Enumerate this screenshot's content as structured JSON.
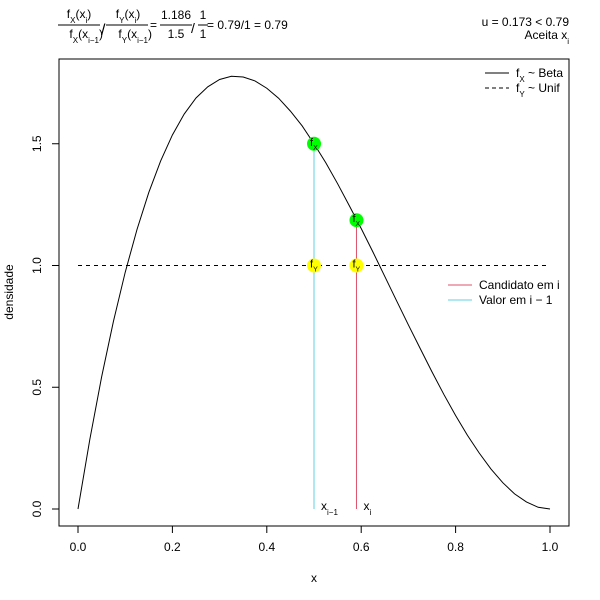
{
  "chart_data": {
    "type": "line",
    "xlabel": "x",
    "ylabel": "densidade",
    "xlim": [
      0,
      1
    ],
    "ylim": [
      0,
      1.78
    ],
    "x_ticks": [
      0,
      0.2,
      0.4,
      0.6,
      0.8,
      1.0
    ],
    "x_tick_labels": [
      "0.0",
      "0.2",
      "0.4",
      "0.6",
      "0.8",
      "1.0"
    ],
    "y_ticks": [
      0,
      0.5,
      1.0,
      1.5
    ],
    "y_tick_labels": [
      "0.0",
      "0.5",
      "1.0",
      "1.5"
    ],
    "grid": false,
    "series": [
      {
        "name": "fX ~ Beta",
        "style": "solid",
        "color": "#000000",
        "x": [
          0,
          0.025,
          0.05,
          0.075,
          0.1,
          0.125,
          0.15,
          0.175,
          0.2,
          0.225,
          0.25,
          0.275,
          0.3,
          0.325,
          0.35,
          0.375,
          0.4,
          0.425,
          0.45,
          0.475,
          0.5,
          0.525,
          0.55,
          0.575,
          0.6,
          0.625,
          0.65,
          0.675,
          0.7,
          0.725,
          0.75,
          0.775,
          0.8,
          0.825,
          0.85,
          0.875,
          0.9,
          0.925,
          0.95,
          0.975,
          1.0
        ],
        "y": [
          0,
          0.285,
          0.542,
          0.77,
          0.972,
          1.148,
          1.3,
          1.429,
          1.536,
          1.622,
          1.688,
          1.734,
          1.764,
          1.777,
          1.774,
          1.758,
          1.728,
          1.687,
          1.634,
          1.573,
          1.5,
          1.422,
          1.336,
          1.245,
          1.152,
          1.055,
          0.955,
          0.855,
          0.756,
          0.659,
          0.563,
          0.471,
          0.384,
          0.303,
          0.23,
          0.164,
          0.108,
          0.062,
          0.029,
          0.007,
          0
        ]
      },
      {
        "name": "fY ~ Unif",
        "style": "dashed",
        "color": "#000000",
        "x": [
          0,
          1
        ],
        "y": [
          1,
          1
        ]
      }
    ],
    "segments": [
      {
        "name": "Candidato em i",
        "color": "#df536b",
        "x": 0.59,
        "y0": 0,
        "y1": 1.186
      },
      {
        "name": "Valor em i − 1",
        "color": "#61d0e6",
        "x": 0.5,
        "y0": 0,
        "y1": 1.5
      }
    ],
    "points": [
      {
        "label": "fX",
        "x": 0.5,
        "y": 1.5,
        "color": "#00ff00"
      },
      {
        "label": "fX",
        "x": 0.59,
        "y": 1.186,
        "color": "#00ff00"
      },
      {
        "label": "fY",
        "x": 0.5,
        "y": 1.0,
        "color": "#ffff00"
      },
      {
        "label": "fY",
        "x": 0.59,
        "y": 1.0,
        "color": "#ffff00"
      }
    ],
    "annotations": [
      {
        "base": "x",
        "sub": "i−1",
        "x": 0.5
      },
      {
        "base": "x",
        "sub": "i",
        "x": 0.59
      }
    ],
    "legend_top_right": [
      {
        "base": "f",
        "sub": "X",
        "suffix": " ~ Beta",
        "style": "solid"
      },
      {
        "base": "f",
        "sub": "Y",
        "suffix": " ~ Unif",
        "style": "dashed"
      }
    ],
    "legend_right": [
      {
        "label": "Candidato em i",
        "color": "#df536b"
      },
      {
        "label": "Valor em i − 1",
        "color": "#61d0e6"
      }
    ],
    "formula": {
      "num1_base": "f",
      "num1_sub": "X",
      "num1_arg": "x",
      "num1_arg_sub": "i",
      "den1_base": "f",
      "den1_sub": "X",
      "den1_arg": "x",
      "den1_arg_sub": "i−1",
      "num2_base": "f",
      "num2_sub": "Y",
      "num2_arg": "x",
      "num2_arg_sub": "i",
      "den2_base": "f",
      "den2_sub": "Y",
      "den2_arg": "x",
      "den2_arg_sub": "i−1",
      "val_num1": "1.186",
      "val_den1": "1.5",
      "val_num2": "1",
      "val_den2": "1",
      "result": "= 0.79/1 = 0.79"
    },
    "decision": {
      "line1": "u =  0.173 < 0.79",
      "line2_base": "Aceita x",
      "line2_sub": "i"
    }
  }
}
